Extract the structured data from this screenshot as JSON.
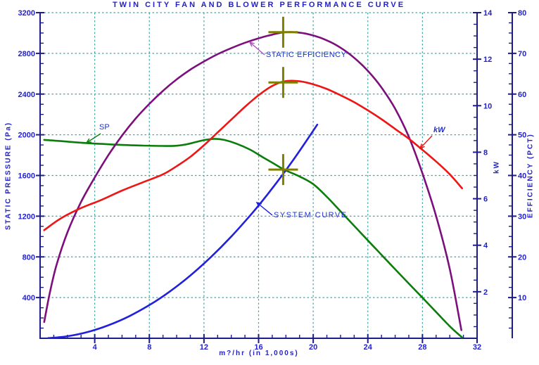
{
  "title": "TWIN CITY FAN AND BLOWER PERFORMANCE CURVE",
  "colors": {
    "title_text": "#2222c8",
    "axis": "#1c1c8a",
    "tick_label": "#2222cc",
    "grid": "#3fa8a8",
    "sp_curve": "#0b7d0b",
    "kw_curve": "#ee1515",
    "efficiency_curve": "#7d0f7d",
    "system_curve": "#2020dd",
    "crosshair": "#7f7f00",
    "efficiency_arrow": "#b24fc4"
  },
  "axes": {
    "x": {
      "label": "m?/hr  (in  1,000s)",
      "min": 0,
      "max": 32,
      "major": 4,
      "minor": 1,
      "tick_labels": [
        "4",
        "8",
        "12",
        "16",
        "20",
        "24",
        "28",
        "32"
      ]
    },
    "pressure": {
      "label": "STATIC  PRESSURE  (Pa)",
      "min": 0,
      "max": 3200,
      "major": 400,
      "minor": 100,
      "tick_labels": [
        "400",
        "800",
        "1200",
        "1600",
        "2000",
        "2400",
        "2800",
        "3200"
      ]
    },
    "kw": {
      "label": "kW",
      "min": 0,
      "max": 14,
      "major": 2,
      "minor": 0.5,
      "tick_labels": [
        "2",
        "4",
        "6",
        "8",
        "10",
        "12",
        "14"
      ]
    },
    "eff": {
      "label": "EFFICIENCY  (PCT)",
      "min": 0,
      "max": 80,
      "major": 10,
      "minor": 2.5,
      "tick_labels": [
        "10",
        "20",
        "30",
        "40",
        "50",
        "60",
        "70",
        "80"
      ]
    }
  },
  "annotations": {
    "sp": {
      "text": "SP"
    },
    "se": {
      "text": "STATIC EFFICIENCY"
    },
    "kw": {
      "text": "kW"
    },
    "sys": {
      "text": "SYSTEM CURVE"
    }
  },
  "chart_data": {
    "type": "line",
    "title": "TWIN CITY FAN AND BLOWER PERFORMANCE CURVE",
    "xlabel": "m?/hr (in 1,000s)",
    "x_range": [
      0,
      32
    ],
    "grid": true,
    "y_axes": {
      "pressure": {
        "label": "STATIC PRESSURE (Pa)",
        "range": [
          0,
          3200
        ]
      },
      "kw": {
        "label": "kW",
        "range": [
          0,
          14
        ]
      },
      "eff": {
        "label": "EFFICIENCY (PCT)",
        "range": [
          0,
          80
        ]
      }
    },
    "series": [
      {
        "name": "SP",
        "axis": "pressure",
        "color": "#0b7d0b",
        "points": [
          [
            0.3,
            1950
          ],
          [
            1.5,
            1938
          ],
          [
            3,
            1922
          ],
          [
            4.5,
            1910
          ],
          [
            6,
            1900
          ],
          [
            7.5,
            1894
          ],
          [
            9,
            1890
          ],
          [
            9.8,
            1891
          ],
          [
            10.6,
            1903
          ],
          [
            11.4,
            1928
          ],
          [
            12.1,
            1950
          ],
          [
            12.8,
            1960
          ],
          [
            13.5,
            1949
          ],
          [
            14.4,
            1912
          ],
          [
            15.4,
            1852
          ],
          [
            16.4,
            1772
          ],
          [
            17.2,
            1710
          ],
          [
            17.9,
            1655
          ],
          [
            19,
            1590
          ],
          [
            20,
            1515
          ],
          [
            21,
            1390
          ],
          [
            22,
            1248
          ],
          [
            23,
            1105
          ],
          [
            24,
            962
          ],
          [
            25,
            820
          ],
          [
            26,
            678
          ],
          [
            27,
            538
          ],
          [
            28,
            399
          ],
          [
            29,
            258
          ],
          [
            30,
            118
          ],
          [
            30.9,
            8
          ]
        ]
      },
      {
        "name": "STATIC EFFICIENCY",
        "axis": "eff",
        "color": "#7d0f7d",
        "points": [
          [
            0.3,
            4
          ],
          [
            0.7,
            11
          ],
          [
            1.2,
            18
          ],
          [
            2,
            26
          ],
          [
            3,
            33.5
          ],
          [
            4,
            39.5
          ],
          [
            5,
            45
          ],
          [
            6,
            49.8
          ],
          [
            7,
            54
          ],
          [
            8,
            57.6
          ],
          [
            9,
            60.8
          ],
          [
            10,
            63.6
          ],
          [
            11,
            66
          ],
          [
            12,
            68
          ],
          [
            13,
            69.8
          ],
          [
            14,
            71.3
          ],
          [
            15,
            72.6
          ],
          [
            16,
            73.7
          ],
          [
            17,
            74.6
          ],
          [
            17.9,
            75.2
          ],
          [
            19,
            75.1
          ],
          [
            20,
            74.4
          ],
          [
            21,
            73.2
          ],
          [
            22,
            71.4
          ],
          [
            23,
            68.9
          ],
          [
            24,
            65.7
          ],
          [
            25,
            61.6
          ],
          [
            26,
            56.4
          ],
          [
            27,
            49.5
          ],
          [
            28,
            40.5
          ],
          [
            29,
            30
          ],
          [
            30,
            17
          ],
          [
            30.85,
            2
          ]
        ]
      },
      {
        "name": "kW",
        "axis": "kw",
        "color": "#ee1515",
        "points": [
          [
            0.3,
            4.65
          ],
          [
            1.5,
            5.15
          ],
          [
            3,
            5.6
          ],
          [
            4.5,
            5.95
          ],
          [
            6,
            6.35
          ],
          [
            7.5,
            6.7
          ],
          [
            9,
            7.05
          ],
          [
            10,
            7.4
          ],
          [
            11,
            7.8
          ],
          [
            12,
            8.3
          ],
          [
            13,
            8.85
          ],
          [
            14,
            9.4
          ],
          [
            15,
            9.95
          ],
          [
            16,
            10.45
          ],
          [
            17,
            10.85
          ],
          [
            17.9,
            11.05
          ],
          [
            19,
            11.05
          ],
          [
            20,
            10.92
          ],
          [
            21,
            10.72
          ],
          [
            22,
            10.45
          ],
          [
            23,
            10.15
          ],
          [
            24,
            9.8
          ],
          [
            25,
            9.42
          ],
          [
            26,
            9.0
          ],
          [
            27,
            8.58
          ],
          [
            28,
            8.1
          ],
          [
            29,
            7.6
          ],
          [
            30,
            7.05
          ],
          [
            30.9,
            6.45
          ]
        ]
      },
      {
        "name": "SYSTEM CURVE",
        "axis": "pressure",
        "color": "#2020dd",
        "points": [
          [
            0.6,
            2
          ],
          [
            2,
            20
          ],
          [
            3.5,
            62
          ],
          [
            5,
            128
          ],
          [
            6.5,
            215
          ],
          [
            8,
            326
          ],
          [
            9.5,
            460
          ],
          [
            11,
            617
          ],
          [
            12.5,
            797
          ],
          [
            14,
            1000
          ],
          [
            15.5,
            1225
          ],
          [
            16.5,
            1388
          ],
          [
            17.4,
            1544
          ],
          [
            18,
            1652
          ],
          [
            18.8,
            1802
          ],
          [
            19.6,
            1960
          ],
          [
            20.3,
            2100
          ]
        ]
      }
    ],
    "markers": [
      {
        "name": "efficiency-operating-point",
        "x": 17.8,
        "axis": "eff",
        "value": 75.2
      },
      {
        "name": "kw-operating-point",
        "x": 17.8,
        "axis": "kw",
        "value": 11.0
      },
      {
        "name": "duty-point",
        "x": 17.8,
        "axis": "pressure",
        "value": 1658
      }
    ],
    "legend_position": "none"
  }
}
